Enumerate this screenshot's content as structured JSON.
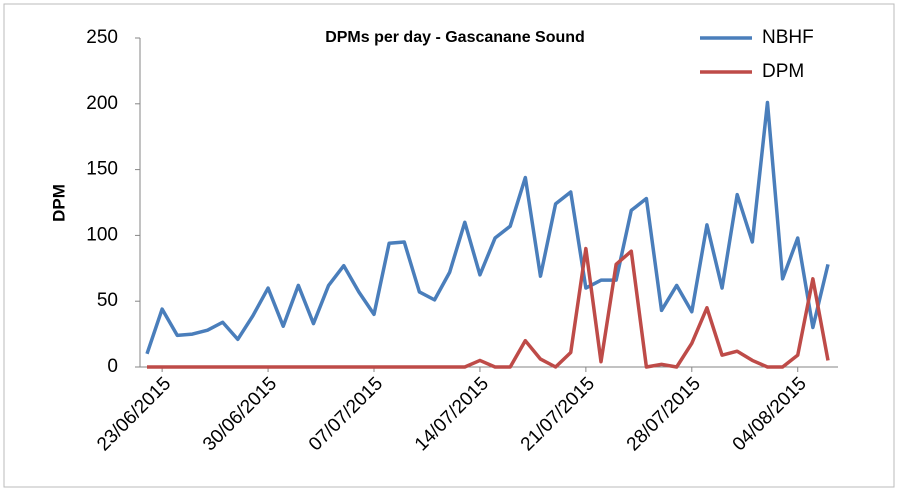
{
  "chart_data": {
    "type": "line",
    "title": "DPMs per day - Gascanane Sound",
    "y_label": "DPM",
    "categories": [
      null,
      "23/06/2015",
      null,
      null,
      null,
      null,
      null,
      null,
      "30/06/2015",
      null,
      null,
      null,
      null,
      null,
      null,
      "07/07/2015",
      null,
      null,
      null,
      null,
      null,
      null,
      "14/07/2015",
      null,
      null,
      null,
      null,
      null,
      null,
      "21/07/2015",
      null,
      null,
      null,
      null,
      null,
      null,
      "28/07/2015",
      null,
      null,
      null,
      null,
      null,
      null,
      "04/08/2015",
      null,
      null
    ],
    "series": [
      {
        "name": "NBHF",
        "color": "#4a7ebb",
        "values": [
          10,
          44,
          24,
          25,
          28,
          34,
          21,
          39,
          60,
          31,
          62,
          33,
          62,
          77,
          57,
          40,
          94,
          95,
          57,
          51,
          72,
          110,
          70,
          98,
          107,
          144,
          69,
          124,
          133,
          60,
          66,
          66,
          119,
          128,
          43,
          62,
          42,
          108,
          60,
          131,
          95,
          201,
          67,
          98,
          30,
          78
        ]
      },
      {
        "name": "DPM",
        "color": "#be4b48",
        "values": [
          0,
          0,
          0,
          0,
          0,
          0,
          0,
          0,
          0,
          0,
          0,
          0,
          0,
          0,
          0,
          0,
          0,
          0,
          0,
          0,
          0,
          0,
          5,
          0,
          0,
          20,
          6,
          0,
          11,
          90,
          4,
          78,
          88,
          0,
          2,
          0,
          18,
          45,
          9,
          12,
          5,
          0,
          0,
          9,
          67,
          5
        ]
      }
    ],
    "ylim": [
      0,
      250
    ],
    "yticks": [
      0,
      50,
      100,
      150,
      200,
      250
    ],
    "legend": "top-right"
  }
}
